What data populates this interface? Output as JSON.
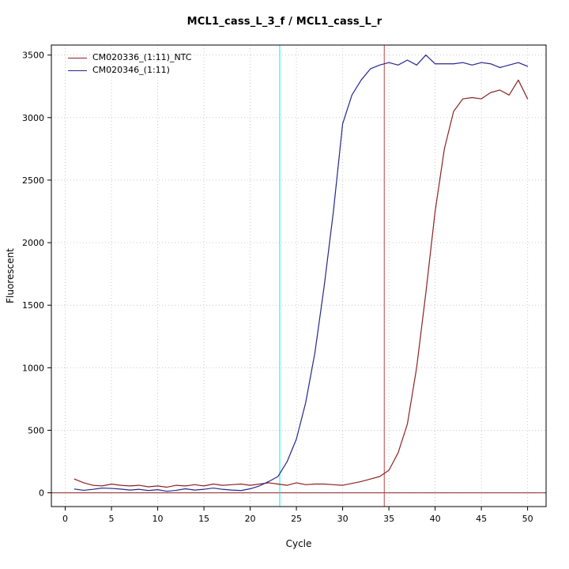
{
  "chart_data": {
    "type": "line",
    "title": "MCL1_cass_L_3_f / MCL1_cass_L_r",
    "xlabel": "Cycle",
    "ylabel": "Fluorescent",
    "xlim": [
      -1.5,
      52
    ],
    "ylim": [
      -110,
      3580
    ],
    "xticks": [
      0,
      5,
      10,
      15,
      20,
      25,
      30,
      35,
      40,
      45,
      50
    ],
    "yticks": [
      0,
      500,
      1000,
      1500,
      2000,
      2500,
      3000,
      3500
    ],
    "grid": true,
    "grid_color": "#c8c8c8",
    "box_color": "#000000",
    "legend_position": "top-left",
    "vlines": [
      {
        "x": 23.2,
        "color": "#00eeee",
        "label": "threshold-cycle-blue"
      },
      {
        "x": 34.5,
        "color": "#c04040",
        "label": "threshold-cycle-red"
      }
    ],
    "hlines": [
      {
        "y": 0,
        "color": "#8b2323",
        "label": "zero-baseline"
      }
    ],
    "x": [
      1,
      2,
      3,
      4,
      5,
      6,
      7,
      8,
      9,
      10,
      11,
      12,
      13,
      14,
      15,
      16,
      17,
      18,
      19,
      20,
      21,
      22,
      23,
      24,
      25,
      26,
      27,
      28,
      29,
      30,
      31,
      32,
      33,
      34,
      35,
      36,
      37,
      38,
      39,
      40,
      41,
      42,
      43,
      44,
      45,
      46,
      47,
      48,
      49,
      50
    ],
    "series": [
      {
        "name": "CM020336_(1:11)_NTC",
        "color": "#8b2323",
        "values": [
          110,
          80,
          60,
          55,
          70,
          60,
          55,
          60,
          48,
          55,
          45,
          60,
          55,
          65,
          55,
          70,
          60,
          65,
          70,
          60,
          70,
          80,
          70,
          60,
          80,
          65,
          70,
          70,
          65,
          60,
          75,
          90,
          110,
          130,
          180,
          320,
          550,
          1000,
          1600,
          2250,
          2750,
          3050,
          3150,
          3160,
          3150,
          3200,
          3220,
          3180,
          3300,
          3150
        ]
      },
      {
        "name": "CM020346_(1:11)",
        "color": "#26268c",
        "values": [
          30,
          20,
          28,
          38,
          35,
          30,
          22,
          28,
          18,
          25,
          12,
          20,
          32,
          22,
          28,
          38,
          28,
          22,
          18,
          32,
          55,
          90,
          130,
          250,
          430,
          720,
          1120,
          1650,
          2250,
          2950,
          3180,
          3300,
          3390,
          3420,
          3440,
          3420,
          3460,
          3420,
          3500,
          3430,
          3430,
          3430,
          3440,
          3420,
          3440,
          3430,
          3400,
          3420,
          3440,
          3410
        ]
      }
    ]
  }
}
